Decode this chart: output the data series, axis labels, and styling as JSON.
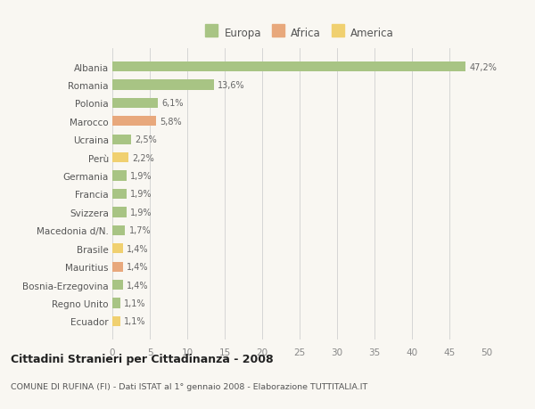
{
  "categories": [
    "Albania",
    "Romania",
    "Polonia",
    "Marocco",
    "Ucraina",
    "Perù",
    "Germania",
    "Francia",
    "Svizzera",
    "Macedonia d/N.",
    "Brasile",
    "Mauritius",
    "Bosnia-Erzegovina",
    "Regno Unito",
    "Ecuador"
  ],
  "values": [
    47.2,
    13.6,
    6.1,
    5.8,
    2.5,
    2.2,
    1.9,
    1.9,
    1.9,
    1.7,
    1.4,
    1.4,
    1.4,
    1.1,
    1.1
  ],
  "labels": [
    "47,2%",
    "13,6%",
    "6,1%",
    "5,8%",
    "2,5%",
    "2,2%",
    "1,9%",
    "1,9%",
    "1,9%",
    "1,7%",
    "1,4%",
    "1,4%",
    "1,4%",
    "1,1%",
    "1,1%"
  ],
  "colors": [
    "#a8c484",
    "#a8c484",
    "#a8c484",
    "#e8a87c",
    "#a8c484",
    "#f0d070",
    "#a8c484",
    "#a8c484",
    "#a8c484",
    "#a8c484",
    "#f0d070",
    "#e8a87c",
    "#a8c484",
    "#a8c484",
    "#f0d070"
  ],
  "legend_labels": [
    "Europa",
    "Africa",
    "America"
  ],
  "legend_colors": [
    "#a8c484",
    "#e8a87c",
    "#f0d070"
  ],
  "xlim": [
    0,
    50
  ],
  "xticks": [
    0,
    5,
    10,
    15,
    20,
    25,
    30,
    35,
    40,
    45,
    50
  ],
  "title": "Cittadini Stranieri per Cittadinanza - 2008",
  "subtitle": "COMUNE DI RUFINA (FI) - Dati ISTAT al 1° gennaio 2008 - Elaborazione TUTTITALIA.IT",
  "bg_color": "#f9f7f2",
  "grid_color": "#d0d0d0"
}
